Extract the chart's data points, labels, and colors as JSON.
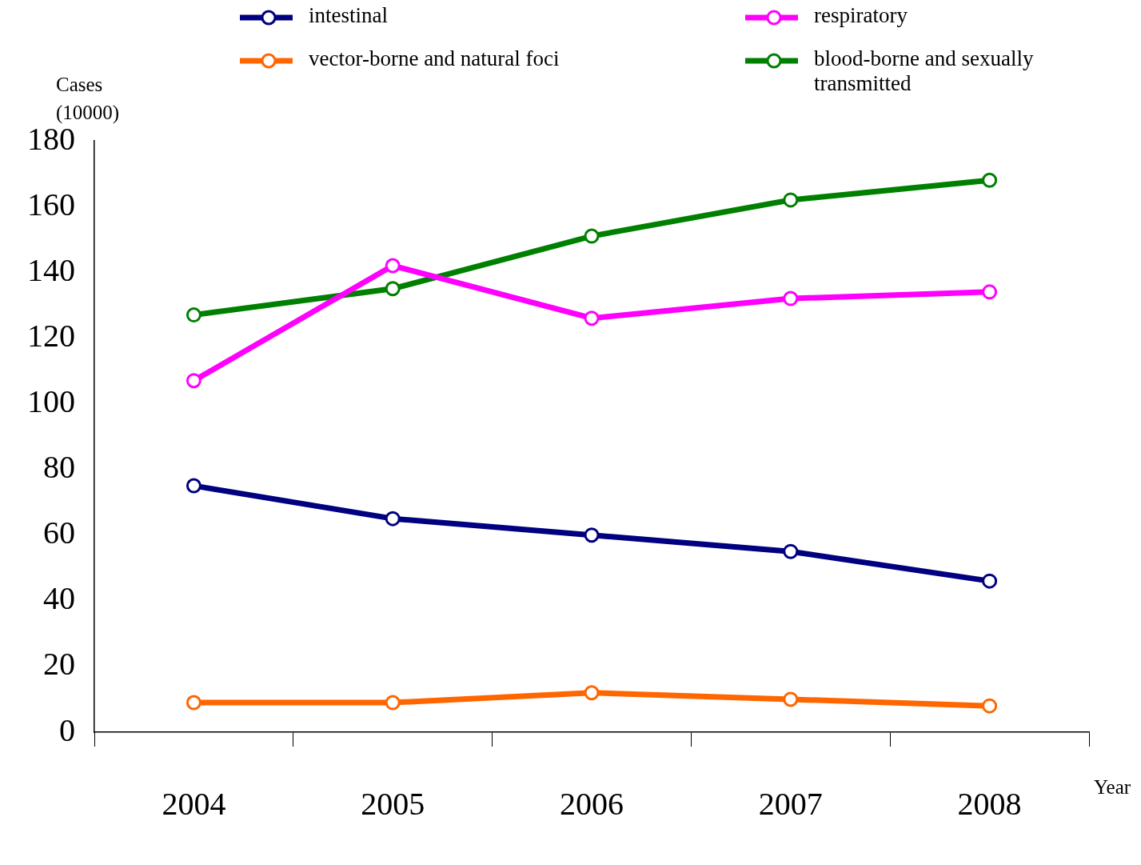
{
  "chart_data": {
    "type": "line",
    "xlabel": "Year",
    "ylabel": "Cases (10000)",
    "categories": [
      "2004",
      "2005",
      "2006",
      "2007",
      "2008"
    ],
    "series": [
      {
        "name": "intestinal",
        "color": "#000080",
        "values": [
          75,
          65,
          60,
          55,
          46
        ]
      },
      {
        "name": "respiratory",
        "color": "#ff00ff",
        "values": [
          107,
          142,
          126,
          132,
          134
        ]
      },
      {
        "name": "vector-borne and natural foci",
        "color": "#ff6600",
        "values": [
          9,
          9,
          12,
          10,
          8
        ]
      },
      {
        "name": "blood-borne and sexually transmitted",
        "color": "#008000",
        "values": [
          127,
          135,
          151,
          162,
          168
        ]
      }
    ],
    "ylim": [
      0,
      180
    ],
    "yticks": [
      0,
      20,
      40,
      60,
      80,
      100,
      120,
      140,
      160,
      180
    ],
    "grid": false,
    "legend": "top",
    "marker": "circle",
    "line_style": "solid"
  }
}
